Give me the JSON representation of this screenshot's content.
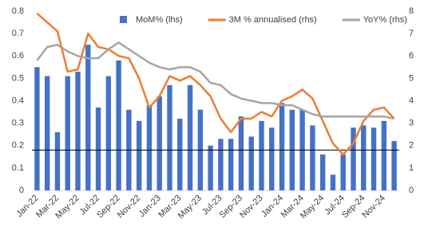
{
  "chart_data": {
    "type": "bar-line",
    "categories": [
      "Jan-22",
      null,
      "Mar-22",
      null,
      "May-22",
      null,
      "Jul-22",
      null,
      "Sep-22",
      null,
      "Nov-22",
      null,
      "Jan-23",
      null,
      "Mar-23",
      null,
      "May-23",
      null,
      "Jul-23",
      null,
      "Sep-23",
      null,
      "Nov-23",
      null,
      "Jan-24",
      null,
      "Mar-24",
      null,
      "May-24",
      null,
      "Jul-24",
      null,
      "Sep-24",
      null,
      "Nov-24",
      null
    ],
    "series": [
      {
        "name": "MoM% (lhs)",
        "type": "bar",
        "color": "#4472c4",
        "values": [
          0.55,
          0.51,
          0.26,
          0.51,
          0.53,
          0.65,
          0.37,
          0.51,
          0.58,
          0.36,
          0.31,
          0.38,
          0.42,
          0.47,
          0.32,
          0.47,
          0.36,
          0.2,
          0.23,
          0.23,
          0.33,
          0.24,
          0.31,
          0.28,
          0.39,
          0.36,
          0.36,
          0.29,
          0.16,
          0.07,
          0.16,
          0.28,
          0.29,
          0.28,
          0.31,
          0.22
        ]
      },
      {
        "name": "3M % annualised (rhs)",
        "type": "line",
        "axis": "y2",
        "color": "#ed7d31",
        "values": [
          7.9,
          7.5,
          7.1,
          5.3,
          5.4,
          7.0,
          6.4,
          6.3,
          6.0,
          5.9,
          5.0,
          3.7,
          4.2,
          5.1,
          4.9,
          5.1,
          4.7,
          4.2,
          3.2,
          2.6,
          3.2,
          3.2,
          3.5,
          3.3,
          4.0,
          4.2,
          4.5,
          4.1,
          3.1,
          2.1,
          1.6,
          2.1,
          3.1,
          3.6,
          3.7,
          3.2
        ]
      },
      {
        "name": "YoY% (rhs)",
        "type": "line",
        "axis": "y2",
        "color": "#a5a5a5",
        "values": [
          5.8,
          6.4,
          6.5,
          6.2,
          6.0,
          5.9,
          5.9,
          6.3,
          6.6,
          6.3,
          6.0,
          5.7,
          5.5,
          5.4,
          5.5,
          5.5,
          5.3,
          4.8,
          4.7,
          4.3,
          4.1,
          4.0,
          3.9,
          3.9,
          3.8,
          3.8,
          3.6,
          3.4,
          3.3,
          3.3,
          3.3,
          3.3,
          3.3,
          3.3,
          3.3,
          3.2
        ]
      }
    ],
    "hline": 0.18,
    "ylim": [
      0,
      0.8
    ],
    "yticks": [
      0,
      0.1,
      0.2,
      0.3,
      0.4,
      0.5,
      0.6,
      0.7,
      0.8
    ],
    "y2lim": [
      0,
      8
    ],
    "y2ticks": [
      0,
      1,
      2,
      3,
      4,
      5,
      6,
      7,
      8
    ]
  }
}
